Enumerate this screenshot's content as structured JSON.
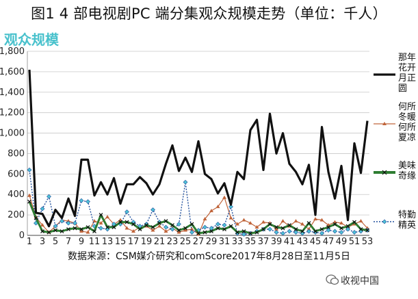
{
  "chart_data": {
    "type": "line",
    "title": "图1 4 部电视剧PC 端分集观众规模走势（单位：千人）",
    "subtitle": "观众规模",
    "xlabel": "",
    "ylabel": "",
    "ylim": [
      0,
      1800
    ],
    "yticks": [
      "0",
      "200",
      "400",
      "600",
      "800",
      "1,000",
      "1,200",
      "1,400",
      "1,600",
      "1,800"
    ],
    "xticks": [
      "1",
      "3",
      "5",
      "7",
      "9",
      "11",
      "13",
      "15",
      "17",
      "19",
      "21",
      "23",
      "25",
      "27",
      "29",
      "31",
      "33",
      "35",
      "37",
      "39",
      "41",
      "43",
      "45",
      "47",
      "49",
      "51",
      "53"
    ],
    "x": [
      1,
      2,
      3,
      4,
      5,
      6,
      7,
      8,
      9,
      10,
      11,
      12,
      13,
      14,
      15,
      16,
      17,
      18,
      19,
      20,
      21,
      22,
      23,
      24,
      25,
      26,
      27,
      28,
      29,
      30,
      31,
      32,
      33,
      34,
      35,
      36,
      37,
      38,
      39,
      40,
      41,
      42,
      43,
      44,
      45,
      46,
      47,
      48,
      49,
      50,
      51,
      52,
      53
    ],
    "legend_position": "right",
    "grid": true,
    "series": [
      {
        "name": "那年花开月正圆",
        "legend_lines": [
          "那年",
          "花开",
          "月正",
          "圆"
        ],
        "color": "#111111",
        "style": "solid-thick",
        "values": [
          1620,
          220,
          210,
          90,
          250,
          170,
          360,
          190,
          740,
          740,
          390,
          520,
          400,
          560,
          310,
          500,
          500,
          570,
          510,
          400,
          500,
          700,
          880,
          630,
          760,
          620,
          920,
          600,
          550,
          410,
          510,
          300,
          620,
          550,
          1030,
          1130,
          640,
          1190,
          800,
          1000,
          700,
          620,
          500,
          690,
          200,
          1060,
          620,
          360,
          680,
          150,
          900,
          610,
          1120
        ]
      },
      {
        "name": "何所冬暖何所夏凉",
        "legend_lines": [
          "何所",
          "冬暖",
          "何所",
          "夏凉"
        ],
        "color": "#c0643a",
        "style": "triangle",
        "values": [
          390,
          180,
          100,
          30,
          90,
          150,
          140,
          120,
          40,
          30,
          140,
          120,
          180,
          110,
          150,
          70,
          40,
          80,
          90,
          50,
          90,
          40,
          70,
          30,
          50,
          60,
          10,
          160,
          240,
          280,
          370,
          170,
          110,
          150,
          120,
          80,
          130,
          120,
          60,
          140,
          90,
          140,
          110,
          60,
          160,
          150,
          100,
          130,
          120,
          80,
          110,
          140,
          70
        ]
      },
      {
        "name": "美味奇缘",
        "legend_lines": [
          "美味",
          "奇缘"
        ],
        "color": "#2e7d32",
        "style": "x-thick",
        "values": [
          330,
          170,
          40,
          30,
          50,
          40,
          60,
          70,
          60,
          80,
          40,
          200,
          80,
          80,
          130,
          130,
          110,
          60,
          100,
          80,
          120,
          140,
          100,
          50,
          70,
          110,
          20,
          30,
          40,
          70,
          60,
          90,
          30,
          40,
          20,
          30,
          60,
          110,
          80,
          70,
          100,
          60,
          40,
          120,
          40,
          60,
          80,
          110,
          70,
          90,
          130,
          60,
          50
        ]
      },
      {
        "name": "特勤精英",
        "legend_lines": [
          "特勤",
          "精英"
        ],
        "color": "#1f4e9c",
        "style": "dotted-diamond",
        "values": [
          640,
          120,
          260,
          380,
          90,
          140,
          120,
          120,
          340,
          330,
          90,
          70,
          60,
          110,
          110,
          230,
          130,
          90,
          110,
          250,
          130,
          80,
          60,
          110,
          520,
          30,
          50,
          80,
          70,
          110,
          100,
          280,
          20,
          10,
          20,
          40,
          60,
          60,
          30,
          20,
          40,
          30,
          20,
          40,
          30,
          20,
          50,
          40,
          30,
          60,
          30,
          40,
          50
        ]
      }
    ]
  },
  "source_note": "数据来源：CSM媒介研究和comScore2017年8月28日至11月5日",
  "watermark": "收视中国"
}
